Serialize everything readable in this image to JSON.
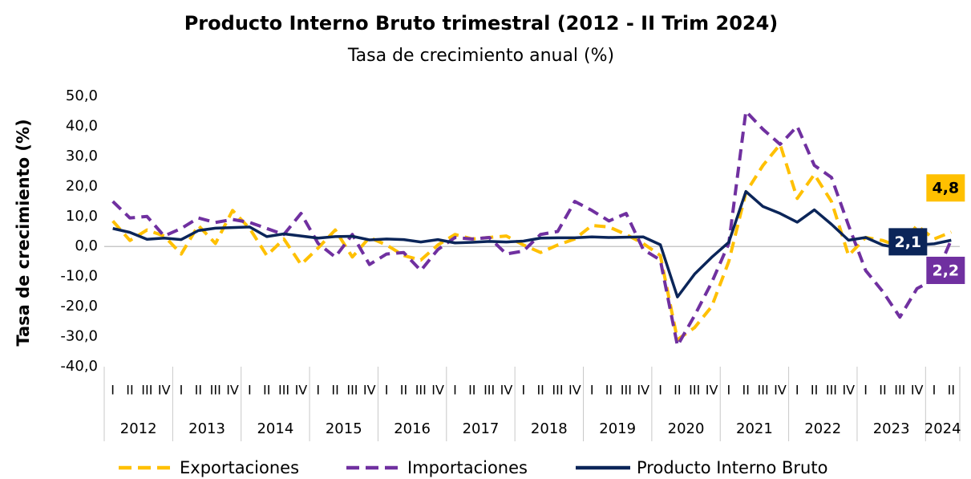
{
  "chart_data": {
    "type": "line",
    "title": "Producto Interno Bruto trimestral (2012 - II Trim 2024)",
    "subtitle": "Tasa de crecimiento anual (%)",
    "y_label": "Tasa de crecimiento (%)",
    "categories": [
      "I",
      "II",
      "III",
      "IV",
      "I",
      "II",
      "III",
      "IV",
      "I",
      "II",
      "III",
      "IV",
      "I",
      "II",
      "III",
      "IV",
      "I",
      "II",
      "III",
      "IV",
      "I",
      "II",
      "III",
      "IV",
      "I",
      "II",
      "III",
      "IV",
      "I",
      "II",
      "III",
      "IV",
      "I",
      "II",
      "III",
      "IV",
      "I",
      "II",
      "III",
      "IV",
      "I",
      "II",
      "III",
      "IV",
      "I",
      "II",
      "III",
      "IV",
      "I",
      "II"
    ],
    "groups": [
      "2012",
      "2013",
      "2014",
      "2015",
      "2016",
      "2017",
      "2018",
      "2019",
      "2020",
      "2021",
      "2022",
      "2023",
      "2024"
    ],
    "ylim": [
      -40,
      50
    ],
    "yticks": [
      {
        "value": -40,
        "label": "-40,0"
      },
      {
        "value": -30,
        "label": "-30,0"
      },
      {
        "value": -20,
        "label": "-20,0"
      },
      {
        "value": -10,
        "label": "-10,0"
      },
      {
        "value": 0,
        "label": "0,0"
      },
      {
        "value": 10,
        "label": "10,0"
      },
      {
        "value": 20,
        "label": "20,0"
      },
      {
        "value": 30,
        "label": "30,0"
      },
      {
        "value": 40,
        "label": "40,0"
      },
      {
        "value": 50,
        "label": "50,0"
      }
    ],
    "series": [
      {
        "name": "Exportaciones",
        "color": "#ffc000",
        "style": "dashed",
        "values": [
          8.5,
          2.0,
          5.5,
          3.5,
          -2.5,
          7.0,
          1.0,
          12.0,
          6.0,
          -3.0,
          2.5,
          -6.0,
          -0.5,
          5.5,
          -3.5,
          3.0,
          0.5,
          -3.0,
          -4.5,
          0.5,
          4.0,
          2.5,
          3.0,
          3.5,
          0.5,
          -2.0,
          0.5,
          2.5,
          7.0,
          6.5,
          4.0,
          1.0,
          -3.0,
          -31.0,
          -27.0,
          -20.0,
          -5.0,
          18.0,
          27.0,
          34.0,
          16.0,
          24.0,
          15.0,
          -3.0,
          3.0,
          2.0,
          0.0,
          7.0,
          2.5,
          4.8
        ],
        "value_labels": [
          null,
          null,
          null,
          null,
          null,
          null,
          null,
          null,
          null,
          null,
          null,
          null,
          null,
          null,
          null,
          null,
          null,
          null,
          null,
          null,
          null,
          null,
          null,
          null,
          null,
          null,
          null,
          null,
          null,
          null,
          null,
          null,
          null,
          null,
          null,
          null,
          null,
          null,
          null,
          null,
          null,
          null,
          null,
          null,
          null,
          null,
          null,
          null,
          null,
          "4,8"
        ]
      },
      {
        "name": "Importaciones",
        "color": "#7030a0",
        "style": "dashed",
        "values": [
          15.0,
          9.5,
          10.0,
          3.5,
          6.0,
          9.5,
          8.0,
          9.0,
          8.0,
          6.0,
          4.0,
          11.0,
          1.0,
          -3.5,
          4.0,
          -6.0,
          -2.5,
          -2.0,
          -8.0,
          -1.0,
          3.0,
          2.5,
          3.0,
          -2.5,
          -1.5,
          4.0,
          5.0,
          15.0,
          12.0,
          8.5,
          11.0,
          -1.0,
          -4.5,
          -33.0,
          -23.0,
          -12.0,
          1.0,
          45.0,
          39.0,
          34.0,
          40.0,
          27.0,
          23.0,
          7.0,
          -8.0,
          -15.0,
          -23.5,
          -14.0,
          -11.0,
          2.2
        ],
        "value_labels": [
          null,
          null,
          null,
          null,
          null,
          null,
          null,
          null,
          null,
          null,
          null,
          null,
          null,
          null,
          null,
          null,
          null,
          null,
          null,
          null,
          null,
          null,
          null,
          null,
          null,
          null,
          null,
          null,
          null,
          null,
          null,
          null,
          null,
          null,
          null,
          null,
          null,
          null,
          null,
          null,
          null,
          null,
          null,
          null,
          null,
          null,
          null,
          null,
          null,
          "2,2"
        ]
      },
      {
        "name": "Producto Interno Bruto",
        "color": "#0b2559",
        "style": "solid",
        "values": [
          6.0,
          4.7,
          2.4,
          2.8,
          2.3,
          5.3,
          6.1,
          6.3,
          6.5,
          3.3,
          4.2,
          3.5,
          2.8,
          3.3,
          3.4,
          2.2,
          2.5,
          2.3,
          1.5,
          2.3,
          1.2,
          1.4,
          1.7,
          1.5,
          1.8,
          2.8,
          2.9,
          2.9,
          3.2,
          3.0,
          3.1,
          3.2,
          0.6,
          -16.8,
          -9.2,
          -3.6,
          1.4,
          18.3,
          13.3,
          11.0,
          8.1,
          12.2,
          7.4,
          2.1,
          3.0,
          0.5,
          -0.6,
          0.5,
          0.9,
          2.1
        ],
        "value_labels": [
          null,
          null,
          null,
          null,
          null,
          null,
          null,
          null,
          null,
          null,
          null,
          null,
          null,
          null,
          null,
          null,
          null,
          null,
          null,
          null,
          null,
          null,
          null,
          null,
          null,
          null,
          null,
          null,
          null,
          null,
          null,
          null,
          null,
          null,
          null,
          null,
          null,
          null,
          null,
          null,
          null,
          null,
          null,
          null,
          null,
          null,
          null,
          null,
          null,
          "2,1"
        ]
      }
    ]
  }
}
